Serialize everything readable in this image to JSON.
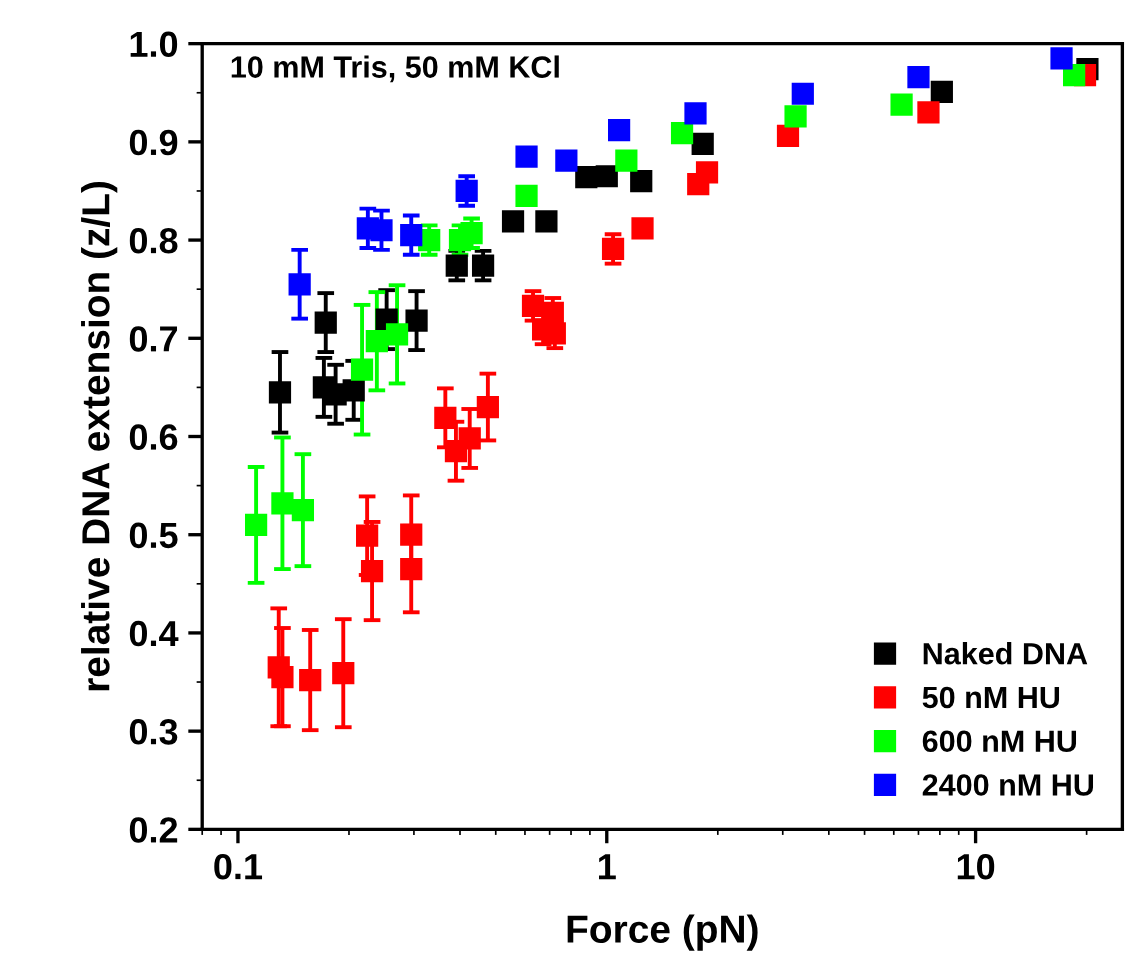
{
  "chart_data": {
    "type": "scatter",
    "xlabel": "Force (pN)",
    "ylabel": "relative DNA extension (z/L)",
    "annotations": [
      "10 mM Tris, 50 mM KCl"
    ],
    "log": "x",
    "xlim": [
      0.08,
      25
    ],
    "ylim": [
      0.2,
      1.0
    ],
    "xticks": [
      0.1,
      1,
      10
    ],
    "yticks": [
      {
        "value": 0.2,
        "label": "0.2"
      },
      {
        "value": 0.3,
        "label": "0.3"
      },
      {
        "value": 0.4,
        "label": "0.4"
      },
      {
        "value": 0.5,
        "label": "0.5"
      },
      {
        "value": 0.6,
        "label": "0.6"
      },
      {
        "value": 0.7,
        "label": "0.7"
      },
      {
        "value": 0.8,
        "label": "0.8"
      },
      {
        "value": 0.9,
        "label": "0.9"
      },
      {
        "value": 1.0,
        "label": "1.0"
      }
    ],
    "marker": "square",
    "legend": "bottom right",
    "grid": false,
    "series": [
      {
        "name": "Naked DNA",
        "color": "#000000",
        "x": [
          0.13,
          0.173,
          0.171,
          0.184,
          0.206,
          0.253,
          0.305,
          0.392,
          0.462,
          0.557,
          0.686,
          0.88,
          1.0,
          1.24,
          1.82,
          3.3,
          8.1,
          20.1
        ],
        "values": [
          0.645,
          0.716,
          0.65,
          0.643,
          0.647,
          0.719,
          0.718,
          0.774,
          0.774,
          0.819,
          0.819,
          0.864,
          0.865,
          0.86,
          0.898,
          null,
          0.951,
          0.974
        ],
        "errors": [
          0.041,
          0.03,
          0.03,
          0.03,
          0.03,
          0.03,
          0.03,
          0.015,
          0.015,
          null,
          null,
          null,
          null,
          null,
          null,
          null,
          null,
          null
        ]
      },
      {
        "name": "50 nM HU",
        "color": "#ff0000",
        "x": [
          0.129,
          0.132,
          0.157,
          0.193,
          0.224,
          0.231,
          0.295,
          0.295,
          0.365,
          0.39,
          0.425,
          0.476,
          0.631,
          0.672,
          0.714,
          0.723,
          1.04,
          1.25,
          1.77,
          1.87,
          3.1,
          7.45,
          19.8
        ],
        "values": [
          0.365,
          0.355,
          0.352,
          0.359,
          0.499,
          0.463,
          0.5,
          0.465,
          0.619,
          0.585,
          0.598,
          0.63,
          0.733,
          0.709,
          0.726,
          0.705,
          0.791,
          0.812,
          0.857,
          0.869,
          0.906,
          0.93,
          0.968
        ],
        "errors": [
          0.06,
          0.05,
          0.051,
          0.055,
          0.04,
          0.05,
          0.04,
          0.044,
          0.03,
          0.03,
          0.03,
          0.034,
          0.015,
          0.015,
          0.015,
          0.015,
          0.015,
          null,
          null,
          null,
          null,
          null,
          null
        ]
      },
      {
        "name": "600 nM HU",
        "color": "#00ff00",
        "x": [
          0.112,
          0.132,
          0.15,
          0.217,
          0.238,
          0.27,
          0.33,
          0.4,
          0.43,
          0.606,
          1.13,
          1.6,
          3.25,
          6.3,
          18.5
        ],
        "values": [
          0.51,
          0.532,
          0.525,
          0.668,
          0.697,
          0.704,
          0.8,
          0.8,
          0.807,
          0.845,
          0.881,
          0.909,
          0.926,
          0.938,
          0.968
        ],
        "errors": [
          0.059,
          0.067,
          0.057,
          0.066,
          0.05,
          0.05,
          0.015,
          0.015,
          0.015,
          null,
          null,
          null,
          null,
          null,
          null
        ]
      },
      {
        "name": "2400 nM HU",
        "color": "#0000ff",
        "x": [
          0.147,
          0.225,
          0.245,
          0.295,
          0.417,
          0.606,
          0.777,
          1.08,
          1.74,
          3.4,
          7.0,
          17.1
        ],
        "values": [
          0.755,
          0.812,
          0.81,
          0.805,
          0.85,
          0.885,
          0.881,
          0.912,
          0.929,
          0.949,
          0.966,
          0.985
        ],
        "errors": [
          0.035,
          0.02,
          0.02,
          0.02,
          0.015,
          null,
          null,
          null,
          null,
          null,
          null,
          null
        ]
      }
    ]
  }
}
